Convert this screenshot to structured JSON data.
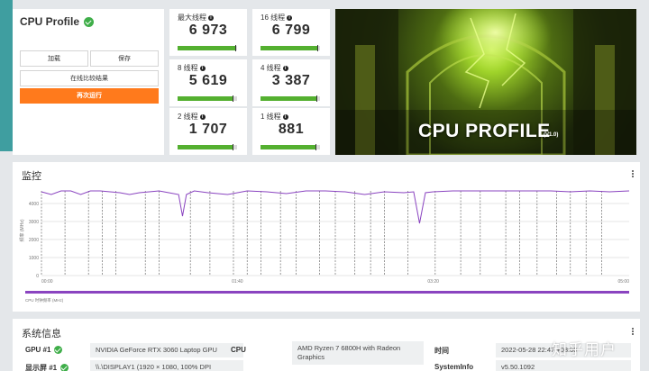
{
  "sidebar_accent": "#3f9ea0",
  "profile": {
    "title": "CPU Profile",
    "load_label": "加载",
    "save_label": "保存",
    "compare_label": "在线比较结果",
    "run_label": "再次运行",
    "accent_color": "#ff7a1c"
  },
  "scores": [
    {
      "label": "最大线程",
      "value": "6 973",
      "fill": 0.97
    },
    {
      "label": "16 线程",
      "value": "6 799",
      "fill": 0.96
    },
    {
      "label": "8 线程",
      "value": "5 619",
      "fill": 0.93
    },
    {
      "label": "4 线程",
      "value": "3 387",
      "fill": 0.94
    },
    {
      "label": "2 线程",
      "value": "1 707",
      "fill": 0.93
    },
    {
      "label": "1 线程",
      "value": "881",
      "fill": 0.93
    }
  ],
  "hero": {
    "title": "CPU PROFILE",
    "version": "(V1.0)"
  },
  "monitor": {
    "title": "监控",
    "y_axis_label": "频率 (MHz)",
    "legend_label": "CPU 时钟频率 (MHz)",
    "series_color": "#8a44c0"
  },
  "chart_data": {
    "type": "line",
    "xlabel": "",
    "ylabel": "频率 (MHz)",
    "y_ticks": [
      0,
      1000,
      2000,
      3000,
      4000
    ],
    "ylim": [
      0,
      5000
    ],
    "x_ticks": [
      "00:00",
      "01:40",
      "03:20",
      "05:00"
    ],
    "xlim": [
      0,
      300
    ],
    "grid": true,
    "legend_position": "bottom",
    "series": [
      {
        "name": "CPU 时钟频率 (MHz)",
        "x": [
          0,
          5,
          10,
          15,
          20,
          25,
          30,
          35,
          40,
          45,
          50,
          55,
          60,
          65,
          70,
          72,
          74,
          78,
          85,
          95,
          105,
          115,
          125,
          135,
          145,
          155,
          165,
          175,
          185,
          190,
          193,
          196,
          200,
          210,
          220,
          230,
          240,
          250,
          260,
          270,
          280,
          290,
          300
        ],
        "y": [
          4650,
          4500,
          4700,
          4700,
          4500,
          4700,
          4700,
          4650,
          4600,
          4500,
          4600,
          4650,
          4700,
          4600,
          4500,
          3300,
          4500,
          4700,
          4600,
          4500,
          4700,
          4650,
          4550,
          4700,
          4700,
          4650,
          4500,
          4650,
          4600,
          4650,
          2900,
          4600,
          4650,
          4700,
          4700,
          4700,
          4700,
          4700,
          4700,
          4650,
          4700,
          4650,
          4700
        ]
      }
    ],
    "phase_markers": [
      0,
      12,
      24,
      31,
      38,
      53,
      60,
      76,
      86,
      98,
      105,
      112,
      122,
      130,
      142,
      150,
      160,
      168,
      175,
      187,
      201,
      214,
      224,
      237,
      244,
      253,
      263,
      270,
      278,
      286
    ]
  },
  "system_info": {
    "title": "系统信息",
    "items": [
      {
        "label": "GPU #1",
        "value": "NVIDIA GeForce RTX 3060 Laptop GPU",
        "check": true
      },
      {
        "label": "CPU",
        "value": "AMD Ryzen 7 6800H with Radeon Graphics",
        "check": false
      },
      {
        "label": "时间",
        "value": "2022-05-28 22:47 +08:00",
        "check": false
      },
      {
        "label": "显示屏 #1",
        "value": "\\\\.\\DISPLAY1 (1920 × 1080, 100% DPI",
        "check": true
      },
      {
        "label": "SystemInfo",
        "value": "v5.50.1092",
        "check": false
      }
    ]
  },
  "watermark": "知乎用户"
}
